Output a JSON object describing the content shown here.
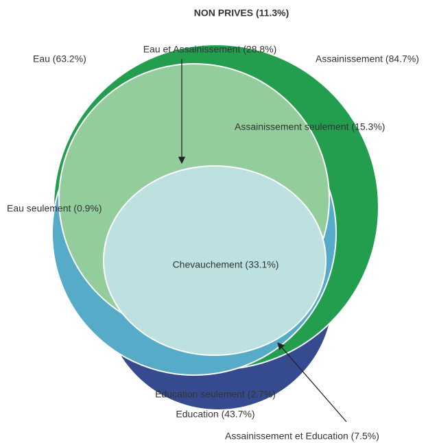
{
  "title": "NON PRIVES (11.3%)",
  "labels": {
    "eau": "Eau (63.2%)",
    "eau_assainissement": "Eau et Assainissement (28.8%)",
    "assainissement": "Assainissement (84.7%)",
    "assainissement_seulement": "Assainissement seulement (15.3%)",
    "eau_seulement": "Eau seulement (0.9%)",
    "chevauchement": "Chevauchement (33.1%)",
    "education_seulement": "Education seulement (2.7%)",
    "education": "Education (43.7%)",
    "assainissement_education": "Assainissement et Education (7.5%)"
  }
}
